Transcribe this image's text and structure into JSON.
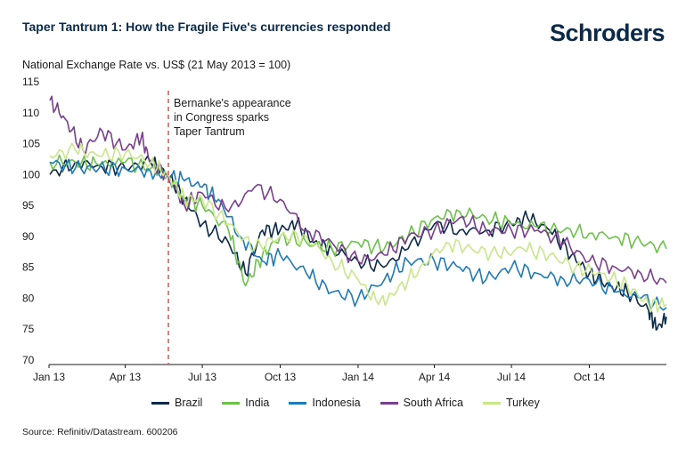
{
  "header": {
    "title": "Taper Tantrum 1: How the Fragile Five's currencies responded",
    "logo": "Schroders"
  },
  "subtitle": "National Exchange Rate vs. US$ (21 May 2013 = 100)",
  "source": "Source: Refinitiv/Datastream. 600206",
  "chart_data": {
    "type": "line",
    "title": "Taper Tantrum 1: How the Fragile Five's currencies responded",
    "ylabel": "National Exchange Rate vs. US$ (21 May 2013 = 100)",
    "ylim": [
      70,
      115
    ],
    "yticks": [
      "115",
      "110",
      "105",
      "100",
      "95",
      "90",
      "85",
      "80",
      "75",
      "70"
    ],
    "xlim": [
      "2013-01-01",
      "2014-12-31"
    ],
    "xticks": [
      "Jan 13",
      "Apr 13",
      "Jul 13",
      "Oct 13",
      "Jan 14",
      "Apr 14",
      "Jul 14",
      "Oct 14"
    ],
    "grid": false,
    "legend_position": "bottom",
    "annotation": {
      "date": "2013-05-22",
      "lines": [
        "Bernanke's appearance",
        "in Congress sparks",
        "Taper Tantrum"
      ],
      "color": "#d9534f"
    },
    "series": [
      {
        "name": "Brazil",
        "color": "#0b2a4a",
        "x": [
          "2013-01-02",
          "2013-02-01",
          "2013-03-01",
          "2013-04-01",
          "2013-05-01",
          "2013-05-21",
          "2013-06-10",
          "2013-07-01",
          "2013-08-01",
          "2013-08-21",
          "2013-09-10",
          "2013-10-01",
          "2013-10-20",
          "2013-11-10",
          "2013-12-01",
          "2014-01-01",
          "2014-01-31",
          "2014-03-01",
          "2014-04-01",
          "2014-05-01",
          "2014-06-01",
          "2014-07-01",
          "2014-07-20",
          "2014-08-15",
          "2014-09-10",
          "2014-10-01",
          "2014-10-25",
          "2014-11-15",
          "2014-12-10",
          "2014-12-20",
          "2014-12-31"
        ],
        "values": [
          100,
          102,
          101.5,
          101,
          102,
          100,
          96,
          92,
          89,
          84,
          91,
          91,
          92,
          89,
          88,
          86,
          85,
          88,
          92,
          91,
          91,
          92,
          93,
          91,
          87,
          84,
          82,
          81,
          78,
          75,
          77
        ]
      },
      {
        "name": "India",
        "color": "#6cc24a",
        "x": [
          "2013-01-02",
          "2013-02-01",
          "2013-03-01",
          "2013-04-01",
          "2013-05-01",
          "2013-05-21",
          "2013-06-10",
          "2013-07-01",
          "2013-08-01",
          "2013-08-21",
          "2013-09-10",
          "2013-10-01",
          "2013-11-01",
          "2013-12-01",
          "2014-01-01",
          "2014-02-01",
          "2014-03-01",
          "2014-04-01",
          "2014-05-01",
          "2014-06-01",
          "2014-07-01",
          "2014-08-01",
          "2014-09-01",
          "2014-10-01",
          "2014-11-01",
          "2014-12-01",
          "2014-12-31"
        ],
        "values": [
          102,
          102,
          101.5,
          102,
          101,
          100,
          96,
          95,
          91,
          82,
          87,
          90,
          89,
          88,
          89,
          88,
          90,
          93,
          94,
          93,
          92,
          91.5,
          91,
          90.5,
          90,
          89,
          88
        ]
      },
      {
        "name": "Indonesia",
        "color": "#1f7ab8",
        "x": [
          "2013-01-02",
          "2013-02-01",
          "2013-03-01",
          "2013-04-01",
          "2013-05-01",
          "2013-05-21",
          "2013-06-10",
          "2013-07-01",
          "2013-07-20",
          "2013-08-15",
          "2013-09-10",
          "2013-10-01",
          "2013-11-01",
          "2013-12-01",
          "2014-01-01",
          "2014-02-01",
          "2014-03-01",
          "2014-04-01",
          "2014-05-01",
          "2014-06-01",
          "2014-07-01",
          "2014-08-01",
          "2014-09-01",
          "2014-10-01",
          "2014-11-01",
          "2014-12-01",
          "2014-12-31"
        ],
        "values": [
          102,
          101,
          101,
          101,
          100.5,
          100,
          99,
          98,
          96,
          90,
          86,
          87,
          84,
          81,
          80,
          83,
          86,
          86,
          85,
          83,
          85,
          84,
          83,
          83,
          81,
          80,
          78.5
        ]
      },
      {
        "name": "South Africa",
        "color": "#7b3f8f",
        "x": [
          "2013-01-02",
          "2013-01-20",
          "2013-02-10",
          "2013-03-05",
          "2013-04-01",
          "2013-04-20",
          "2013-05-01",
          "2013-05-21",
          "2013-06-10",
          "2013-07-01",
          "2013-08-01",
          "2013-09-01",
          "2013-10-01",
          "2013-11-01",
          "2013-12-01",
          "2014-01-01",
          "2014-02-01",
          "2014-03-01",
          "2014-04-01",
          "2014-05-01",
          "2014-06-01",
          "2014-07-01",
          "2014-08-01",
          "2014-09-01",
          "2014-10-01",
          "2014-11-01",
          "2014-12-01",
          "2014-12-31"
        ],
        "values": [
          112,
          109,
          104,
          107,
          104,
          106,
          102,
          100,
          95,
          97,
          94,
          98,
          96,
          91,
          89,
          86,
          87,
          90,
          91,
          93,
          91,
          91,
          91,
          89,
          86,
          85,
          84,
          82.5
        ]
      },
      {
        "name": "Turkey",
        "color": "#c8e68a",
        "x": [
          "2013-01-02",
          "2013-02-01",
          "2013-03-01",
          "2013-04-01",
          "2013-05-01",
          "2013-05-21",
          "2013-06-10",
          "2013-07-01",
          "2013-08-01",
          "2013-09-01",
          "2013-10-01",
          "2013-11-01",
          "2013-12-01",
          "2014-01-01",
          "2014-01-25",
          "2014-02-15",
          "2014-03-15",
          "2014-04-15",
          "2014-05-15",
          "2014-06-15",
          "2014-07-15",
          "2014-08-15",
          "2014-09-15",
          "2014-10-15",
          "2014-11-15",
          "2014-12-10",
          "2014-12-31"
        ],
        "values": [
          103,
          104,
          103,
          103.5,
          102,
          100,
          96,
          96,
          92,
          88,
          90,
          90,
          86,
          83,
          79,
          81,
          85,
          89,
          88,
          87,
          88,
          87,
          85,
          84,
          82,
          79,
          79
        ]
      }
    ]
  }
}
